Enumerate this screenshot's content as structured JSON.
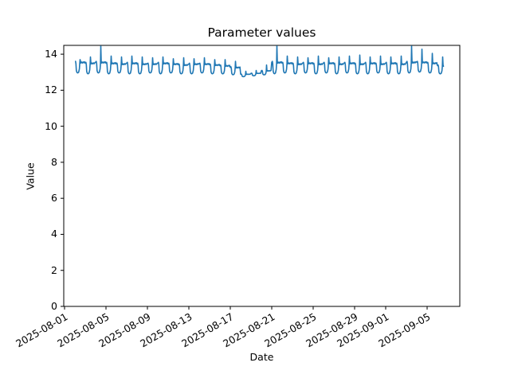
{
  "figure": {
    "background": "#ffffff"
  },
  "chart_data": {
    "type": "line",
    "title": "Parameter values",
    "xlabel": "Date",
    "ylabel": "Value",
    "grid": false,
    "legend": null,
    "line_color": "#1f77b4",
    "line_width": 1.6,
    "frame_color": "#000000",
    "ylim": [
      0,
      14.49
    ],
    "y_ticks": [
      0,
      2,
      4,
      6,
      8,
      10,
      12,
      14
    ],
    "xlim_days": [
      -0.077,
      38.154
    ],
    "x_ticks": [
      {
        "day": 0,
        "label": "2025-08-01"
      },
      {
        "day": 4,
        "label": "2025-08-05"
      },
      {
        "day": 8,
        "label": "2025-08-09"
      },
      {
        "day": 12,
        "label": "2025-08-13"
      },
      {
        "day": 16,
        "label": "2025-08-17"
      },
      {
        "day": 20,
        "label": "2025-08-21"
      },
      {
        "day": 24,
        "label": "2025-08-25"
      },
      {
        "day": 28,
        "label": "2025-08-29"
      },
      {
        "day": 31,
        "label": "2025-09-01"
      },
      {
        "day": 35,
        "label": "2025-09-05"
      }
    ],
    "series_name": "parameter",
    "series_start_day": 1.05,
    "series_end_day": 36.6,
    "daily_template": [
      [
        0.0,
        0.93
      ],
      [
        0.06,
        1.0
      ],
      [
        0.1,
        0.8
      ],
      [
        0.14,
        0.22
      ],
      [
        0.2,
        0.05
      ],
      [
        0.28,
        0.02
      ],
      [
        0.36,
        0.08
      ],
      [
        0.43,
        0.35
      ],
      [
        0.47,
        0.85
      ],
      [
        0.5,
        null
      ],
      [
        0.535,
        1.0
      ],
      [
        0.58,
        0.86
      ],
      [
        0.65,
        0.94
      ],
      [
        0.72,
        0.86
      ],
      [
        0.79,
        0.95
      ],
      [
        0.86,
        0.88
      ],
      [
        0.93,
        0.97
      ]
    ],
    "days": [
      {
        "date": "2025-08-02",
        "min": 12.95,
        "plateau": 13.6,
        "peak": 13.7
      },
      {
        "date": "2025-08-03",
        "min": 12.9,
        "plateau": 13.55,
        "peak": 13.85
      },
      {
        "date": "2025-08-04",
        "min": 12.95,
        "plateau": 13.6,
        "peak": 14.45
      },
      {
        "date": "2025-08-05",
        "min": 12.9,
        "plateau": 13.55,
        "peak": 13.9
      },
      {
        "date": "2025-08-06",
        "min": 12.95,
        "plateau": 13.5,
        "peak": 13.85
      },
      {
        "date": "2025-08-07",
        "min": 12.9,
        "plateau": 13.55,
        "peak": 13.9
      },
      {
        "date": "2025-08-08",
        "min": 12.9,
        "plateau": 13.5,
        "peak": 13.85
      },
      {
        "date": "2025-08-09",
        "min": 12.95,
        "plateau": 13.5,
        "peak": 13.8
      },
      {
        "date": "2025-08-10",
        "min": 12.9,
        "plateau": 13.55,
        "peak": 13.85
      },
      {
        "date": "2025-08-11",
        "min": 12.95,
        "plateau": 13.5,
        "peak": 13.75
      },
      {
        "date": "2025-08-12",
        "min": 12.9,
        "plateau": 13.45,
        "peak": 13.8
      },
      {
        "date": "2025-08-13",
        "min": 12.9,
        "plateau": 13.5,
        "peak": 13.75
      },
      {
        "date": "2025-08-14",
        "min": 12.95,
        "plateau": 13.5,
        "peak": 13.8
      },
      {
        "date": "2025-08-15",
        "min": 12.9,
        "plateau": 13.45,
        "peak": 13.7
      },
      {
        "date": "2025-08-16",
        "min": 12.9,
        "plateau": 13.4,
        "peak": 13.7
      },
      {
        "date": "2025-08-17",
        "min": 12.85,
        "plateau": 13.3,
        "peak": 13.6
      },
      {
        "date": "2025-08-18",
        "min": 12.75,
        "plateau": 12.9,
        "peak": 13.05
      },
      {
        "date": "2025-08-19",
        "min": 12.8,
        "plateau": 12.95,
        "peak": 13.1
      },
      {
        "date": "2025-08-20",
        "min": 12.85,
        "plateau": 13.1,
        "peak": 13.4
      },
      {
        "date": "2025-08-21",
        "min": 12.9,
        "plateau": 13.6,
        "peak": 14.45
      },
      {
        "date": "2025-08-22",
        "min": 12.95,
        "plateau": 13.55,
        "peak": 13.9
      },
      {
        "date": "2025-08-23",
        "min": 12.9,
        "plateau": 13.5,
        "peak": 13.85
      },
      {
        "date": "2025-08-24",
        "min": 12.95,
        "plateau": 13.55,
        "peak": 13.8
      },
      {
        "date": "2025-08-25",
        "min": 12.9,
        "plateau": 13.5,
        "peak": 13.9
      },
      {
        "date": "2025-08-26",
        "min": 12.95,
        "plateau": 13.55,
        "peak": 13.8
      },
      {
        "date": "2025-08-27",
        "min": 12.9,
        "plateau": 13.5,
        "peak": 13.85
      },
      {
        "date": "2025-08-28",
        "min": 12.95,
        "plateau": 13.55,
        "peak": 13.9
      },
      {
        "date": "2025-08-29",
        "min": 12.9,
        "plateau": 13.5,
        "peak": 13.95
      },
      {
        "date": "2025-08-30",
        "min": 12.9,
        "plateau": 13.55,
        "peak": 13.85
      },
      {
        "date": "2025-08-31",
        "min": 12.95,
        "plateau": 13.5,
        "peak": 13.9
      },
      {
        "date": "2025-09-01",
        "min": 12.9,
        "plateau": 13.55,
        "peak": 13.85
      },
      {
        "date": "2025-09-02",
        "min": 12.9,
        "plateau": 13.5,
        "peak": 13.9
      },
      {
        "date": "2025-09-03",
        "min": 12.95,
        "plateau": 13.6,
        "peak": 14.45
      },
      {
        "date": "2025-09-04",
        "min": 13.0,
        "plateau": 13.6,
        "peak": 14.28
      },
      {
        "date": "2025-09-05",
        "min": 12.95,
        "plateau": 13.55,
        "peak": 14.05
      },
      {
        "date": "2025-09-06",
        "min": 12.9,
        "plateau": 13.4,
        "peak": 13.85
      }
    ]
  }
}
